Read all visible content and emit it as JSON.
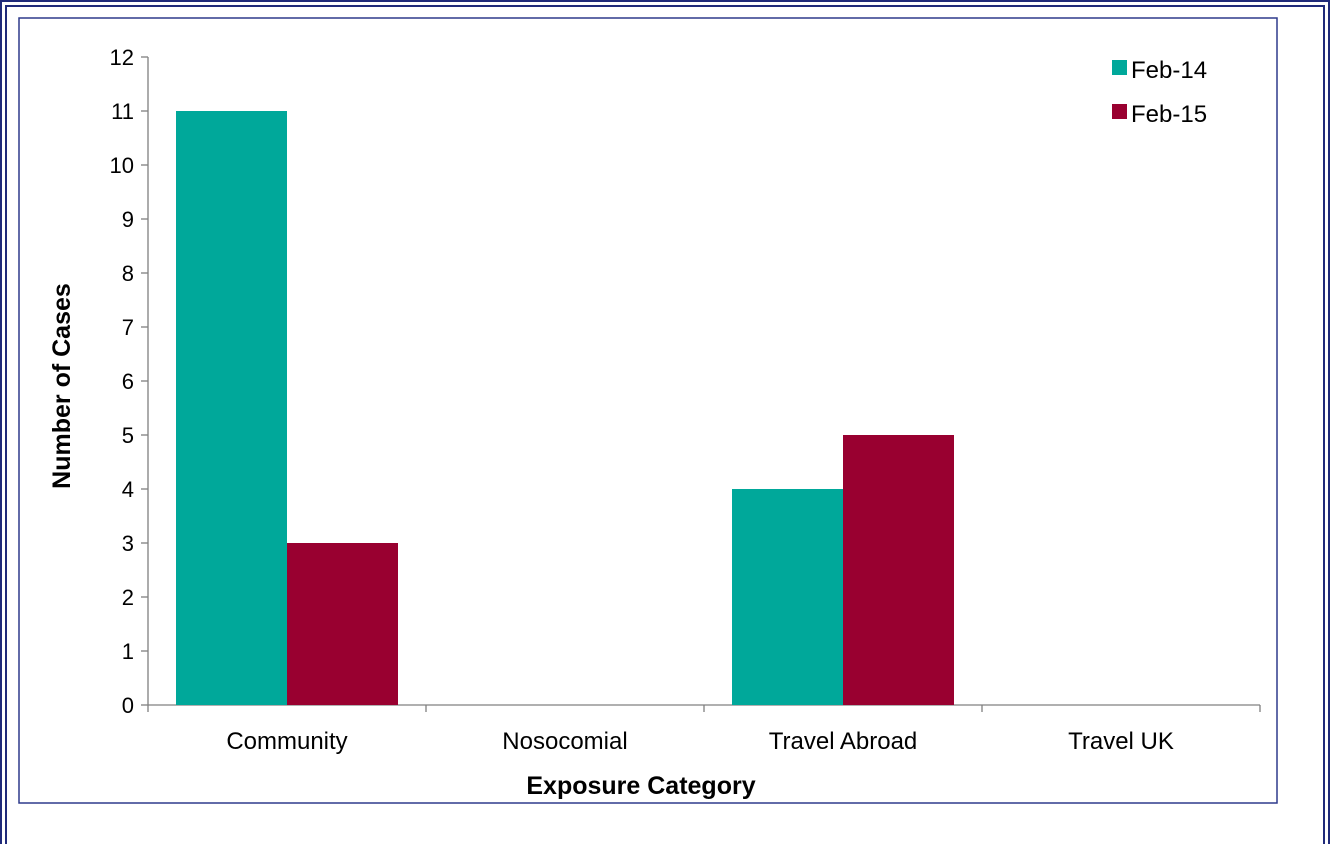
{
  "colors": {
    "frame_border": "#1f2a7a",
    "plot_border": "#2e3a8c",
    "axis": "#808080",
    "feb14": "#00a89a",
    "feb15": "#990030"
  },
  "chart_data": {
    "type": "bar",
    "title": "",
    "xlabel": "Exposure Category",
    "ylabel": "Number of Cases",
    "ylim": [
      0,
      12
    ],
    "yticks": [
      "0",
      "1",
      "2",
      "3",
      "4",
      "5",
      "6",
      "7",
      "8",
      "9",
      "10",
      "11",
      "12"
    ],
    "categories": [
      "Community",
      "Nosocomial",
      "Travel Abroad",
      "Travel UK"
    ],
    "series": [
      {
        "name": "Feb-14",
        "color": "#00a89a",
        "values": [
          11,
          0,
          4,
          0
        ]
      },
      {
        "name": "Feb-15",
        "color": "#990030",
        "values": [
          3,
          0,
          5,
          0
        ]
      }
    ],
    "legend_position": "top-right",
    "grid": false
  }
}
